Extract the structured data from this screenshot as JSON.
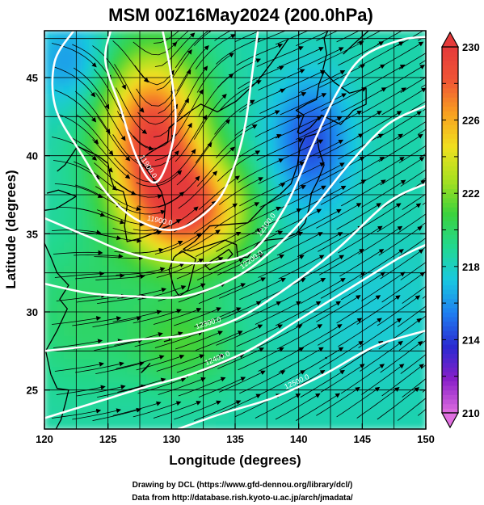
{
  "chart_data": {
    "type": "heatmap",
    "title": "MSM 00Z16May2024 (200.0hPa)",
    "xlabel": "Longitude (degrees)",
    "ylabel": "Latitude  (degrees)",
    "xlim": [
      120,
      150
    ],
    "ylim": [
      22.5,
      48
    ],
    "x_ticks": [
      120,
      125,
      130,
      135,
      140,
      145,
      150
    ],
    "y_ticks": [
      25,
      30,
      35,
      40,
      45
    ],
    "grid": true,
    "colorbar": {
      "min": 210,
      "max": 230,
      "ticks": [
        210,
        214,
        218,
        222,
        226,
        230
      ],
      "colors": [
        "#e070e0",
        "#8a1fc8",
        "#2a2ad0",
        "#1f7ef0",
        "#19c8e0",
        "#22d890",
        "#3cd23c",
        "#a8e020",
        "#f0e020",
        "#f8a020",
        "#ef5535",
        "#e53a3a"
      ]
    },
    "temperature_field": [
      {
        "lon": 128.5,
        "lat": 41.5,
        "value": 229,
        "spread_lon": 4.0,
        "spread_lat": 5.0
      },
      {
        "lon": 131.5,
        "lat": 36.5,
        "value": 228,
        "spread_lon": 4.5,
        "spread_lat": 3.5
      },
      {
        "lon": 136.5,
        "lat": 38.5,
        "value": 218,
        "spread_lon": 6.0,
        "spread_lat": 5.0
      },
      {
        "lon": 141.0,
        "lat": 41.0,
        "value": 214.5,
        "spread_lon": 3.0,
        "spread_lat": 4.0
      },
      {
        "lon": 123.0,
        "lat": 30.0,
        "value": 220,
        "spread_lon": 5.0,
        "spread_lat": 5.0
      },
      {
        "lon": 131.0,
        "lat": 28.0,
        "value": 221,
        "spread_lon": 4.0,
        "spread_lat": 3.0
      },
      {
        "lon": 146.0,
        "lat": 30.0,
        "value": 217.5,
        "spread_lon": 6.0,
        "spread_lat": 5.0
      },
      {
        "lon": 122.0,
        "lat": 46.0,
        "value": 216,
        "spread_lon": 3.0,
        "spread_lat": 3.0
      }
    ],
    "background_value": 218.5,
    "height_contours": [
      {
        "label": "11900.0",
        "points": [
          [
            125.2,
            48
          ],
          [
            124.8,
            46
          ],
          [
            126.0,
            43
          ],
          [
            127.2,
            40
          ],
          [
            128.5,
            38.3
          ],
          [
            129.5,
            39.2
          ],
          [
            130.3,
            42
          ],
          [
            130.0,
            45
          ],
          [
            129.3,
            48
          ]
        ]
      },
      {
        "label": "11900.0",
        "points": [
          [
            122.3,
            48
          ],
          [
            120.8,
            46
          ],
          [
            120.9,
            43
          ],
          [
            123.0,
            40
          ],
          [
            125.0,
            37.5
          ],
          [
            127.5,
            35.8
          ],
          [
            130.5,
            35.3
          ],
          [
            133.5,
            37.0
          ],
          [
            135.0,
            39.5
          ],
          [
            135.8,
            42
          ],
          [
            136.3,
            45
          ],
          [
            136.8,
            48
          ]
        ]
      },
      {
        "label": "12100.0",
        "points": [
          [
            120,
            36.0
          ],
          [
            123.5,
            34.8
          ],
          [
            126.5,
            33.8
          ],
          [
            130.0,
            33.2
          ],
          [
            133.5,
            33.2
          ],
          [
            136.5,
            34.0
          ],
          [
            139.0,
            36.8
          ],
          [
            141.0,
            40.5
          ],
          [
            143.0,
            44.0
          ],
          [
            145.0,
            46.3
          ],
          [
            148.0,
            47.4
          ],
          [
            150,
            47.6
          ]
        ]
      },
      {
        "label": "12200.0",
        "points": [
          [
            120,
            31.8
          ],
          [
            123.5,
            31.2
          ],
          [
            127.0,
            31.0
          ],
          [
            131.0,
            31.0
          ],
          [
            135.0,
            32.2
          ],
          [
            138.0,
            34.0
          ],
          [
            141.0,
            36.5
          ],
          [
            144.0,
            39.5
          ],
          [
            147.0,
            42.0
          ],
          [
            150,
            43.2
          ]
        ]
      },
      {
        "label": "12300.0",
        "points": [
          [
            120,
            27.5
          ],
          [
            123.5,
            27.8
          ],
          [
            127.0,
            28.2
          ],
          [
            131.0,
            28.5
          ],
          [
            135.0,
            29.5
          ],
          [
            139.0,
            31.5
          ],
          [
            143.0,
            34.0
          ],
          [
            147.0,
            37.0
          ],
          [
            150,
            38.2
          ]
        ]
      },
      {
        "label": "12400.0",
        "points": [
          [
            120,
            23.2
          ],
          [
            124.0,
            24.2
          ],
          [
            128.0,
            25.2
          ],
          [
            131.5,
            26.0
          ],
          [
            136.0,
            27.5
          ],
          [
            140.0,
            29.5
          ],
          [
            144.0,
            31.5
          ],
          [
            148.0,
            33.5
          ],
          [
            150,
            34.3
          ]
        ]
      },
      {
        "label": "12500.0",
        "points": [
          [
            130.5,
            22.5
          ],
          [
            134.0,
            23.5
          ],
          [
            138.0,
            24.5
          ],
          [
            142.0,
            26.0
          ],
          [
            146.0,
            27.8
          ],
          [
            150,
            28.8
          ]
        ]
      }
    ],
    "wind_circulation": {
      "trough_lon": 128.5,
      "trough_lat": 41.5,
      "flow": "westerly"
    }
  },
  "credits": {
    "line1": "Drawing by DCL (https://www.gfd-dennou.org/library/dcl/)",
    "line2": "Data from http://database.rish.kyoto-u.ac.jp/arch/jmadata/"
  },
  "icons": [
    "colorbar-up-arrow-icon",
    "colorbar-down-arrow-icon"
  ]
}
